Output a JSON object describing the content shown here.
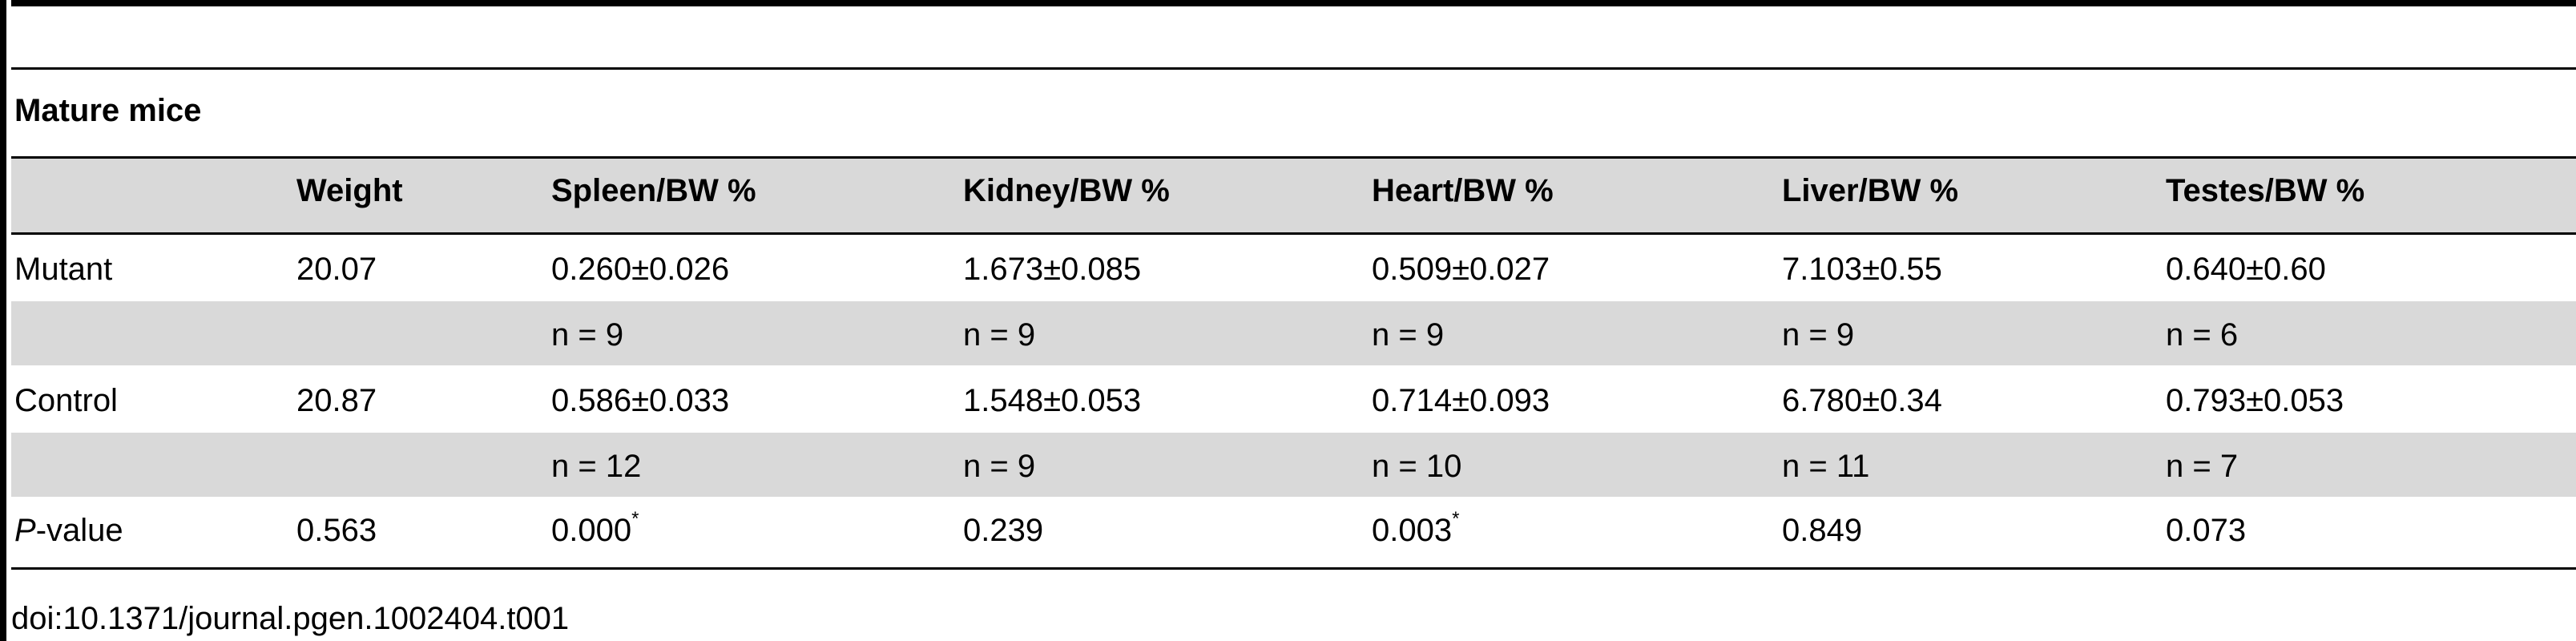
{
  "section_title": "Mature mice",
  "columns": [
    "",
    "Weight",
    "Spleen/BW %",
    "Kidney/BW %",
    "Heart/BW %",
    "Liver/BW %",
    "Testes/BW %"
  ],
  "rows": [
    {
      "label": "Mutant",
      "cells": [
        "20.07",
        "0.260±0.026",
        "1.673±0.085",
        "0.509±0.027",
        "7.103±0.55",
        "0.640±0.60"
      ]
    },
    {
      "label": "",
      "cells": [
        "",
        "n = 9",
        "n = 9",
        "n = 9",
        "n = 9",
        "n = 6"
      ]
    },
    {
      "label": "Control",
      "cells": [
        "20.87",
        "0.586±0.033",
        "1.548±0.053",
        "0.714±0.093",
        "6.780±0.34",
        "0.793±0.053"
      ]
    },
    {
      "label": "",
      "cells": [
        "",
        "n = 12",
        "n = 9",
        "n = 10",
        "n = 11",
        "n = 7"
      ]
    },
    {
      "label_italic": "P",
      "label_rest": "-value",
      "cells": [
        "0.563",
        "0.000",
        "0.239",
        "0.003",
        "0.849",
        "0.073"
      ],
      "marks": [
        "",
        "*",
        "",
        "*",
        "",
        ""
      ]
    }
  ],
  "footnote": "doi:10.1371/journal.pgen.1002404.t001",
  "colors": {
    "band": "#d9d9d9",
    "rule": "#000000",
    "text": "#000000"
  }
}
